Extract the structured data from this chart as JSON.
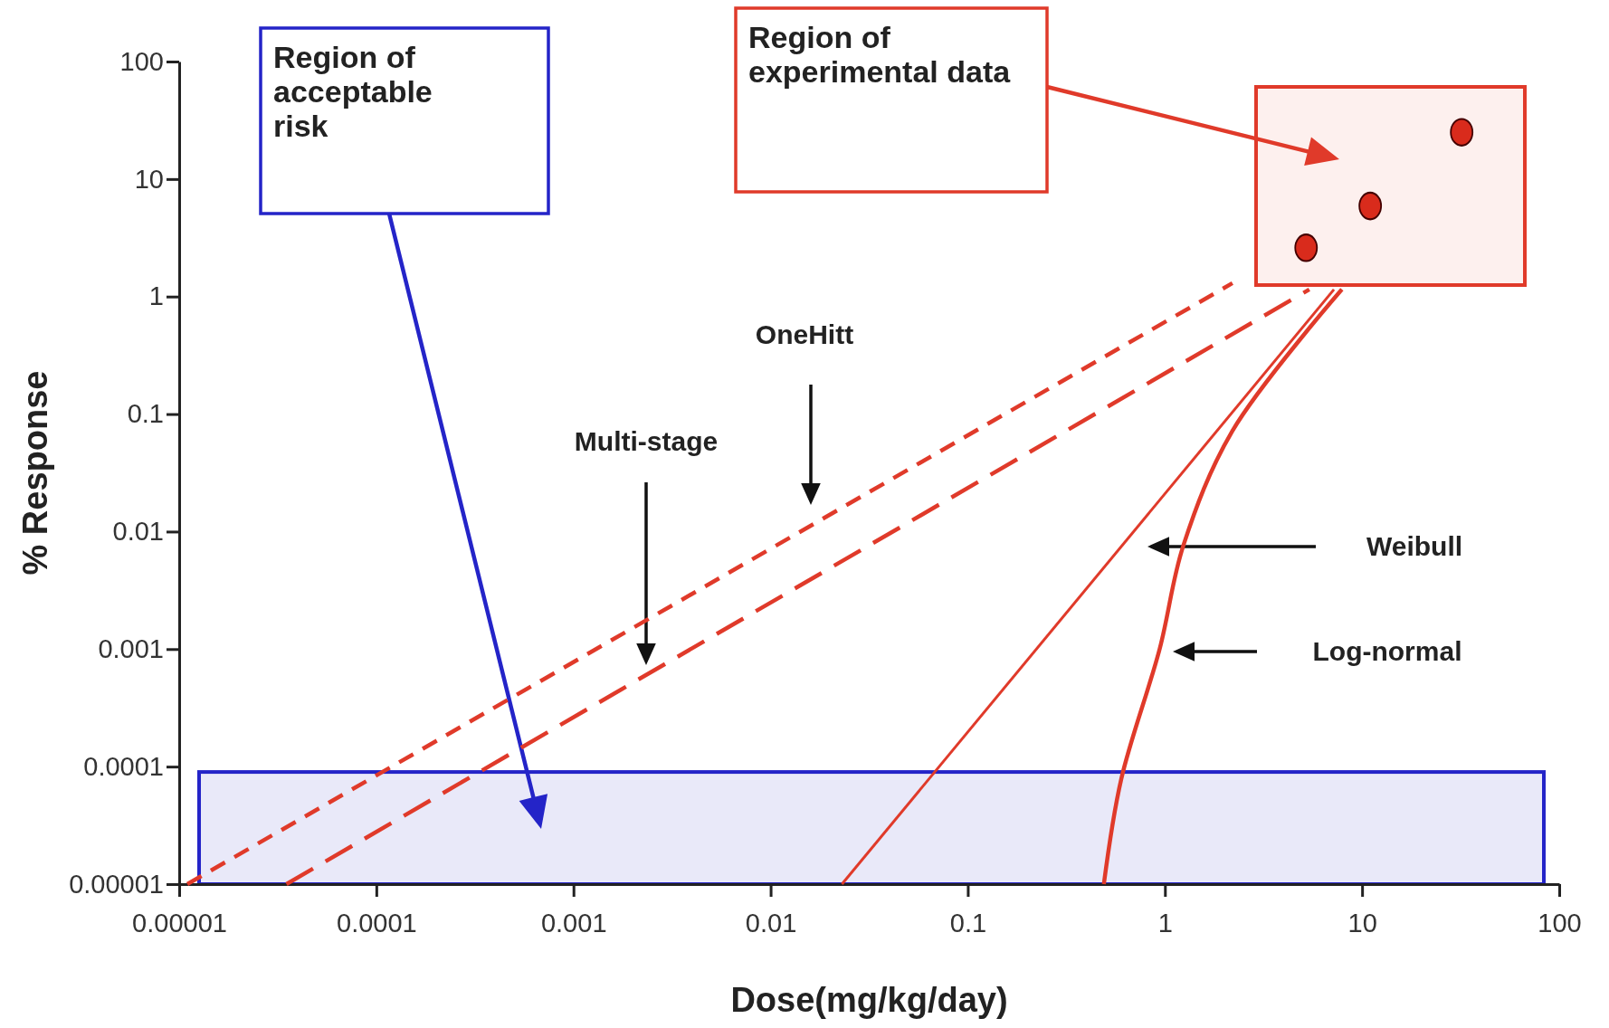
{
  "chart_data": {
    "type": "line",
    "xlabel": "Dose(mg/kg/day)",
    "ylabel": "% Response",
    "log": "xy",
    "xlim": [
      1e-05,
      100
    ],
    "ylim": [
      1e-05,
      100
    ],
    "xticks": [
      {
        "value": 1e-05,
        "label": "0.00001"
      },
      0.0001,
      0.001,
      0.01,
      0.1,
      1,
      10,
      100
    ],
    "yticks": [
      {
        "value": 1e-05,
        "label": "0.00001"
      },
      0.0001,
      0.001,
      0.01,
      0.1,
      1,
      10,
      100
    ],
    "legend": false,
    "grid": false,
    "series": [
      {
        "color": "#e03a2a",
        "line_style": "dashed",
        "x": [
          1.1e-05,
          2.2
        ],
        "values": [
          1e-05,
          1.3
        ]
      },
      {
        "color": "#e03a2a",
        "line_style": "dashed",
        "x": [
          3.5e-05,
          5.4
        ],
        "values": [
          1e-05,
          1.15
        ]
      },
      {
        "color": "#e03a2a",
        "line_style": "solid",
        "x": [
          0.023,
          7.2
        ],
        "values": [
          1e-05,
          1.15
        ]
      },
      {
        "color": "#e03a2a",
        "line_style": "solid",
        "x": [
          0.49,
          0.6,
          0.94,
          1.24,
          2.2,
          7.9
        ],
        "values": [
          1e-05,
          7.8e-05,
          0.001,
          0.0076,
          0.072,
          1.15
        ]
      },
      {
        "type": "scatter",
        "color": "#d92b1c",
        "marker": "circle",
        "x": [
          5.2,
          11,
          32
        ],
        "values": [
          2.6,
          5.9,
          25
        ]
      }
    ],
    "bands": [
      {
        "axis": "y",
        "from": 1e-05,
        "to": 9e-05,
        "color": "#2424c8"
      }
    ],
    "annotations": [
      "Region of acceptable risk",
      "Region of experimental data",
      "OneHitt",
      "Multi-stage",
      "Weibull",
      "Log-normal"
    ]
  }
}
